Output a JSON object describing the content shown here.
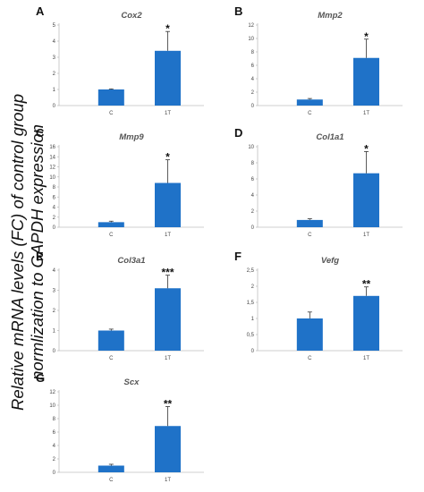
{
  "figure": {
    "ylabel_line1": "Relative mRNA levels (FC) of control group",
    "ylabel_line2": "normlization to GAPDH expression"
  },
  "chart_data": [
    {
      "panel": "A",
      "type": "bar",
      "title": "Cox2",
      "categories": [
        "C",
        "1T"
      ],
      "values": [
        1.0,
        3.4
      ],
      "errors": [
        0.03,
        1.2
      ],
      "ylim": [
        0,
        5
      ],
      "yticks": [
        "0",
        "1",
        "2",
        "3",
        "4",
        "5"
      ],
      "significance": "*",
      "bar_color": "#1f72c8"
    },
    {
      "panel": "B",
      "type": "bar",
      "title": "Mmp2",
      "categories": [
        "C",
        "1T"
      ],
      "values": [
        0.9,
        7.1
      ],
      "errors": [
        0.15,
        2.8
      ],
      "ylim": [
        0,
        12
      ],
      "yticks": [
        "0",
        "2",
        "4",
        "6",
        "8",
        "10",
        "12"
      ],
      "significance": "*",
      "bar_color": "#1f72c8"
    },
    {
      "panel": "C",
      "type": "bar",
      "title": "Mmp9",
      "categories": [
        "C",
        "1T"
      ],
      "values": [
        1.0,
        8.8
      ],
      "errors": [
        0.2,
        4.6
      ],
      "ylim": [
        0,
        16
      ],
      "yticks": [
        "0",
        "2",
        "4",
        "6",
        "8",
        "10",
        "12",
        "14",
        "16"
      ],
      "significance": "*",
      "bar_color": "#1f72c8"
    },
    {
      "panel": "D",
      "type": "bar",
      "title": "Col1a1",
      "categories": [
        "C",
        "1T"
      ],
      "values": [
        0.9,
        6.7
      ],
      "errors": [
        0.15,
        2.7
      ],
      "ylim": [
        0,
        10
      ],
      "yticks": [
        "0",
        "2",
        "4",
        "6",
        "8",
        "10"
      ],
      "significance": "*",
      "bar_color": "#1f72c8"
    },
    {
      "panel": "E",
      "type": "bar",
      "title": "Col3a1",
      "categories": [
        "C",
        "1T"
      ],
      "values": [
        1.0,
        3.1
      ],
      "errors": [
        0.07,
        0.65
      ],
      "ylim": [
        0,
        4
      ],
      "yticks": [
        "0",
        "1",
        "2",
        "3",
        "4"
      ],
      "significance": "***",
      "bar_color": "#1f72c8"
    },
    {
      "panel": "F",
      "type": "bar",
      "title": "Vefg",
      "categories": [
        "C",
        "1T"
      ],
      "values": [
        1.0,
        1.7
      ],
      "errors": [
        0.2,
        0.28
      ],
      "ylim": [
        0,
        2.5
      ],
      "yticks": [
        "0",
        "0,5",
        "1",
        "1,5",
        "2",
        "2,5"
      ],
      "significance": "**",
      "bar_color": "#1f72c8"
    },
    {
      "panel": "G",
      "type": "bar",
      "title": "Scx",
      "categories": [
        "C",
        "1T"
      ],
      "values": [
        1.0,
        6.9
      ],
      "errors": [
        0.2,
        2.9
      ],
      "ylim": [
        0,
        12
      ],
      "yticks": [
        "0",
        "2",
        "4",
        "6",
        "8",
        "10",
        "12"
      ],
      "significance": "**",
      "bar_color": "#1f72c8"
    }
  ]
}
